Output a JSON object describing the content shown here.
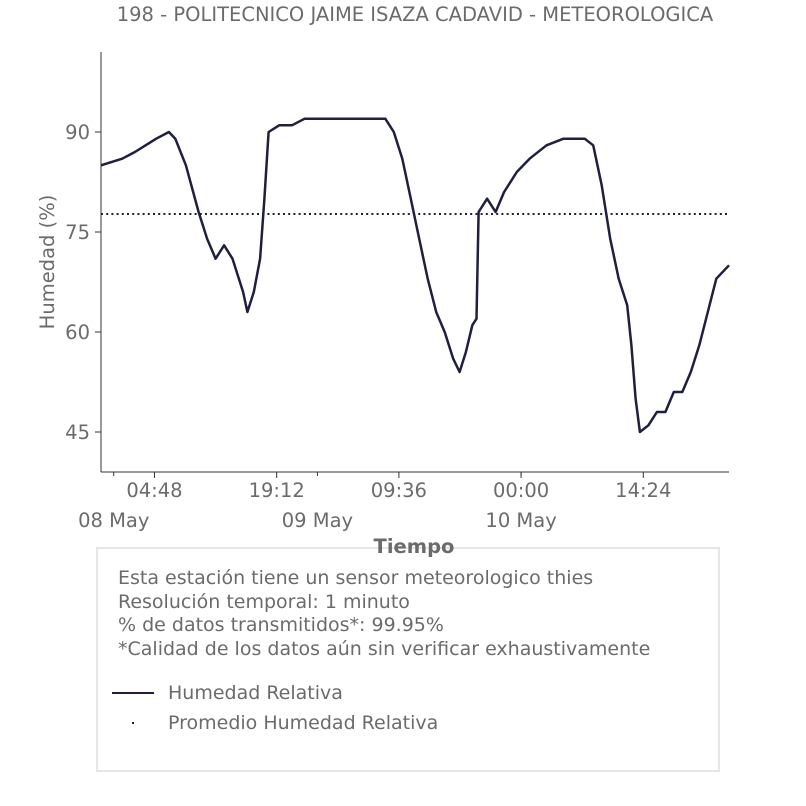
{
  "chart_data": {
    "type": "line",
    "title": "198 - POLITECNICO JAIME ISAZA CADAVID - METEOROLOGICA",
    "xlabel": "Tiempo",
    "ylabel": "Humedad (%)",
    "y_ticks": [
      45,
      60,
      75,
      90
    ],
    "ylim": [
      39,
      102
    ],
    "x_time_ticks": [
      "04:48",
      "19:12",
      "09:36",
      "00:00",
      "14:24"
    ],
    "x_date_labels": [
      "08 May",
      "09 May",
      "10 May"
    ],
    "xlim": [
      "2019-05-07 22:30",
      "2019-05-11 00:30"
    ],
    "grid": false,
    "series": [
      {
        "name": "Humedad Relativa",
        "color": "#1f1f3f",
        "style": "solid",
        "points": [
          [
            "2019-05-07 22:30",
            85
          ],
          [
            "2019-05-08 01:00",
            86
          ],
          [
            "2019-05-08 02:30",
            87
          ],
          [
            "2019-05-08 03:45",
            88
          ],
          [
            "2019-05-08 05:00",
            89
          ],
          [
            "2019-05-08 06:30",
            90
          ],
          [
            "2019-05-08 07:15",
            89
          ],
          [
            "2019-05-08 08:30",
            85
          ],
          [
            "2019-05-08 10:00",
            78
          ],
          [
            "2019-05-08 11:00",
            74
          ],
          [
            "2019-05-08 12:00",
            71
          ],
          [
            "2019-05-08 13:00",
            73
          ],
          [
            "2019-05-08 14:00",
            71
          ],
          [
            "2019-05-08 15:15",
            66
          ],
          [
            "2019-05-08 15:45",
            63
          ],
          [
            "2019-05-08 16:30",
            66
          ],
          [
            "2019-05-08 17:15",
            71
          ],
          [
            "2019-05-08 17:45",
            80
          ],
          [
            "2019-05-08 18:15",
            90
          ],
          [
            "2019-05-08 19:30",
            91
          ],
          [
            "2019-05-08 21:00",
            91
          ],
          [
            "2019-05-08 22:30",
            92
          ],
          [
            "2019-05-09 00:00",
            92
          ],
          [
            "2019-05-09 03:00",
            92
          ],
          [
            "2019-05-09 06:00",
            92
          ],
          [
            "2019-05-09 08:00",
            92
          ],
          [
            "2019-05-09 09:00",
            90
          ],
          [
            "2019-05-09 10:00",
            86
          ],
          [
            "2019-05-09 11:00",
            80
          ],
          [
            "2019-05-09 12:00",
            74
          ],
          [
            "2019-05-09 13:00",
            68
          ],
          [
            "2019-05-09 14:00",
            63
          ],
          [
            "2019-05-09 15:00",
            60
          ],
          [
            "2019-05-09 16:00",
            56
          ],
          [
            "2019-05-09 16:45",
            54
          ],
          [
            "2019-05-09 17:30",
            57
          ],
          [
            "2019-05-09 18:15",
            61
          ],
          [
            "2019-05-09 18:45",
            62
          ],
          [
            "2019-05-09 19:00",
            78
          ],
          [
            "2019-05-09 20:00",
            80
          ],
          [
            "2019-05-09 21:00",
            78
          ],
          [
            "2019-05-09 22:00",
            81
          ],
          [
            "2019-05-09 23:30",
            84
          ],
          [
            "2019-05-10 01:00",
            86
          ],
          [
            "2019-05-10 03:00",
            88
          ],
          [
            "2019-05-10 05:00",
            89
          ],
          [
            "2019-05-10 07:30",
            89
          ],
          [
            "2019-05-10 08:30",
            88
          ],
          [
            "2019-05-10 09:30",
            82
          ],
          [
            "2019-05-10 10:30",
            74
          ],
          [
            "2019-05-10 11:30",
            68
          ],
          [
            "2019-05-10 12:30",
            64
          ],
          [
            "2019-05-10 13:00",
            58
          ],
          [
            "2019-05-10 13:30",
            50
          ],
          [
            "2019-05-10 14:00",
            45
          ],
          [
            "2019-05-10 15:00",
            46
          ],
          [
            "2019-05-10 16:00",
            48
          ],
          [
            "2019-05-10 17:00",
            48
          ],
          [
            "2019-05-10 18:00",
            51
          ],
          [
            "2019-05-10 19:00",
            51
          ],
          [
            "2019-05-10 20:00",
            54
          ],
          [
            "2019-05-10 21:00",
            58
          ],
          [
            "2019-05-10 22:00",
            63
          ],
          [
            "2019-05-10 23:00",
            68
          ],
          [
            "2019-05-11 00:30",
            70
          ]
        ]
      },
      {
        "name": "Promedio Humedad Relativa",
        "color": "#1f1f3f",
        "style": "dotted",
        "value": 77.7
      }
    ]
  },
  "info": {
    "lines": [
      "Esta estación tiene un sensor meteorologico thies",
      "Resolución temporal: 1 minuto",
      "% de datos transmitidos*: 99.95%",
      "*Calidad de los datos aún sin verificar exhaustivamente"
    ]
  },
  "legend": {
    "items": [
      "Humedad Relativa",
      "Promedio Humedad Relativa"
    ]
  }
}
